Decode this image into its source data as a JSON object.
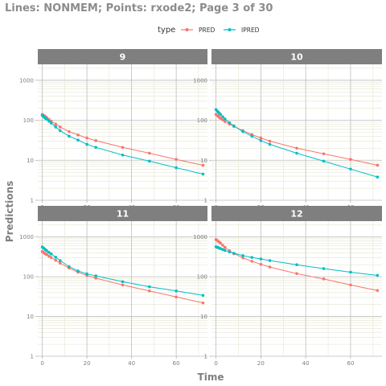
{
  "title": "Lines: NONMEM; Points: rxode2; Page 3 of 30",
  "legend": {
    "title": "type",
    "entries": [
      {
        "label": "PRED",
        "color": "#f8766d"
      },
      {
        "label": "IPRED",
        "color": "#00bfc4"
      }
    ],
    "placement": "top"
  },
  "chart_data": {
    "type": "line",
    "xlabel": "Time",
    "ylabel": "Predictions",
    "y_scale": "log10",
    "xlim": [
      -2,
      74
    ],
    "ylim": [
      1,
      2500
    ],
    "x_ticks": [
      0,
      20,
      40,
      60
    ],
    "x_tick_labels": [
      "0",
      "20",
      "40",
      "60"
    ],
    "y_ticks": [
      1,
      10,
      100,
      1000
    ],
    "y_tick_labels": [
      "1",
      "10",
      "100",
      "1000"
    ],
    "grid": true,
    "colors": {
      "PRED": "#f8766d",
      "IPRED": "#00bfc4",
      "strip": "#7f7f7f",
      "grid": "#e5e5d2"
    },
    "panels": [
      {
        "label": "9",
        "series": [
          {
            "name": "PRED",
            "x": [
              0,
              0.5,
              1,
              1.5,
              2,
              3,
              4,
              6,
              8,
              12,
              16,
              20,
              24,
              36,
              48,
              60,
              72
            ],
            "y": [
              140,
              135,
              128,
              122,
              116,
              105,
              95,
              80,
              68,
              52,
              43,
              36,
              31,
              21,
              15,
              10.5,
              7.5
            ]
          },
          {
            "name": "IPRED",
            "x": [
              0,
              0.5,
              1,
              1.5,
              2,
              3,
              4,
              6,
              8,
              12,
              16,
              20,
              24,
              36,
              48,
              60,
              72
            ],
            "y": [
              132,
              125,
              118,
              112,
              106,
              95,
              85,
              68,
              55,
              40,
              32,
              25,
              21,
              13.5,
              9.5,
              6.5,
              4.5
            ]
          }
        ]
      },
      {
        "label": "10",
        "series": [
          {
            "name": "PRED",
            "x": [
              0,
              0.5,
              1,
              1.5,
              2,
              3,
              4,
              6,
              8,
              12,
              16,
              20,
              24,
              36,
              48,
              60,
              72
            ],
            "y": [
              140,
              133,
              125,
              118,
              112,
              102,
              93,
              80,
              70,
              55,
              44,
              36,
              30,
              20,
              14.5,
              10.5,
              7.5
            ]
          },
          {
            "name": "IPRED",
            "x": [
              0,
              0.5,
              1,
              1.5,
              2,
              3,
              4,
              6,
              8,
              12,
              16,
              20,
              24,
              36,
              48,
              60,
              72
            ],
            "y": [
              185,
              172,
              160,
              150,
              140,
              122,
              108,
              87,
              72,
              52,
              40,
              31,
              25,
              15,
              9.5,
              6,
              3.8
            ]
          }
        ]
      },
      {
        "label": "11",
        "series": [
          {
            "name": "PRED",
            "x": [
              0,
              0.5,
              1,
              1.5,
              2,
              3,
              4,
              6,
              8,
              12,
              16,
              20,
              24,
              36,
              48,
              60,
              72
            ],
            "y": [
              430,
              410,
              390,
              375,
              360,
              330,
              305,
              260,
              220,
              165,
              130,
              108,
              92,
              62,
              44,
              31,
              22
            ]
          },
          {
            "name": "IPRED",
            "x": [
              0,
              0.5,
              1,
              1.5,
              2,
              3,
              4,
              6,
              8,
              12,
              16,
              20,
              24,
              36,
              48,
              60,
              72
            ],
            "y": [
              560,
              530,
              500,
              475,
              450,
              410,
              375,
              310,
              255,
              180,
              140,
              118,
              105,
              75,
              56,
              44,
              34
            ]
          }
        ]
      },
      {
        "label": "12",
        "series": [
          {
            "name": "PRED",
            "x": [
              0,
              0.5,
              1,
              1.5,
              2,
              3,
              4,
              6,
              8,
              12,
              16,
              20,
              24,
              36,
              48,
              60,
              72
            ],
            "y": [
              860,
              820,
              780,
              740,
              700,
              620,
              550,
              450,
              380,
              300,
              245,
              205,
              175,
              120,
              88,
              62,
              45
            ]
          },
          {
            "name": "IPRED",
            "x": [
              0,
              0.5,
              1,
              1.5,
              2,
              3,
              4,
              6,
              8,
              12,
              16,
              20,
              24,
              36,
              48,
              60,
              72
            ],
            "y": [
              570,
              555,
              540,
              525,
              510,
              485,
              460,
              420,
              390,
              340,
              305,
              280,
              255,
              200,
              160,
              130,
              108
            ]
          }
        ]
      }
    ]
  }
}
